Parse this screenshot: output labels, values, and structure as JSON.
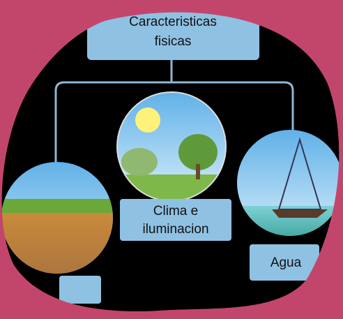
{
  "nodes": [
    {
      "lines": [
        "Caracteristicas",
        "fisicas"
      ]
    },
    {
      "lines": [
        "Clima e",
        "iluminacion"
      ]
    },
    {
      "lines": [
        "Agua"
      ]
    }
  ]
}
